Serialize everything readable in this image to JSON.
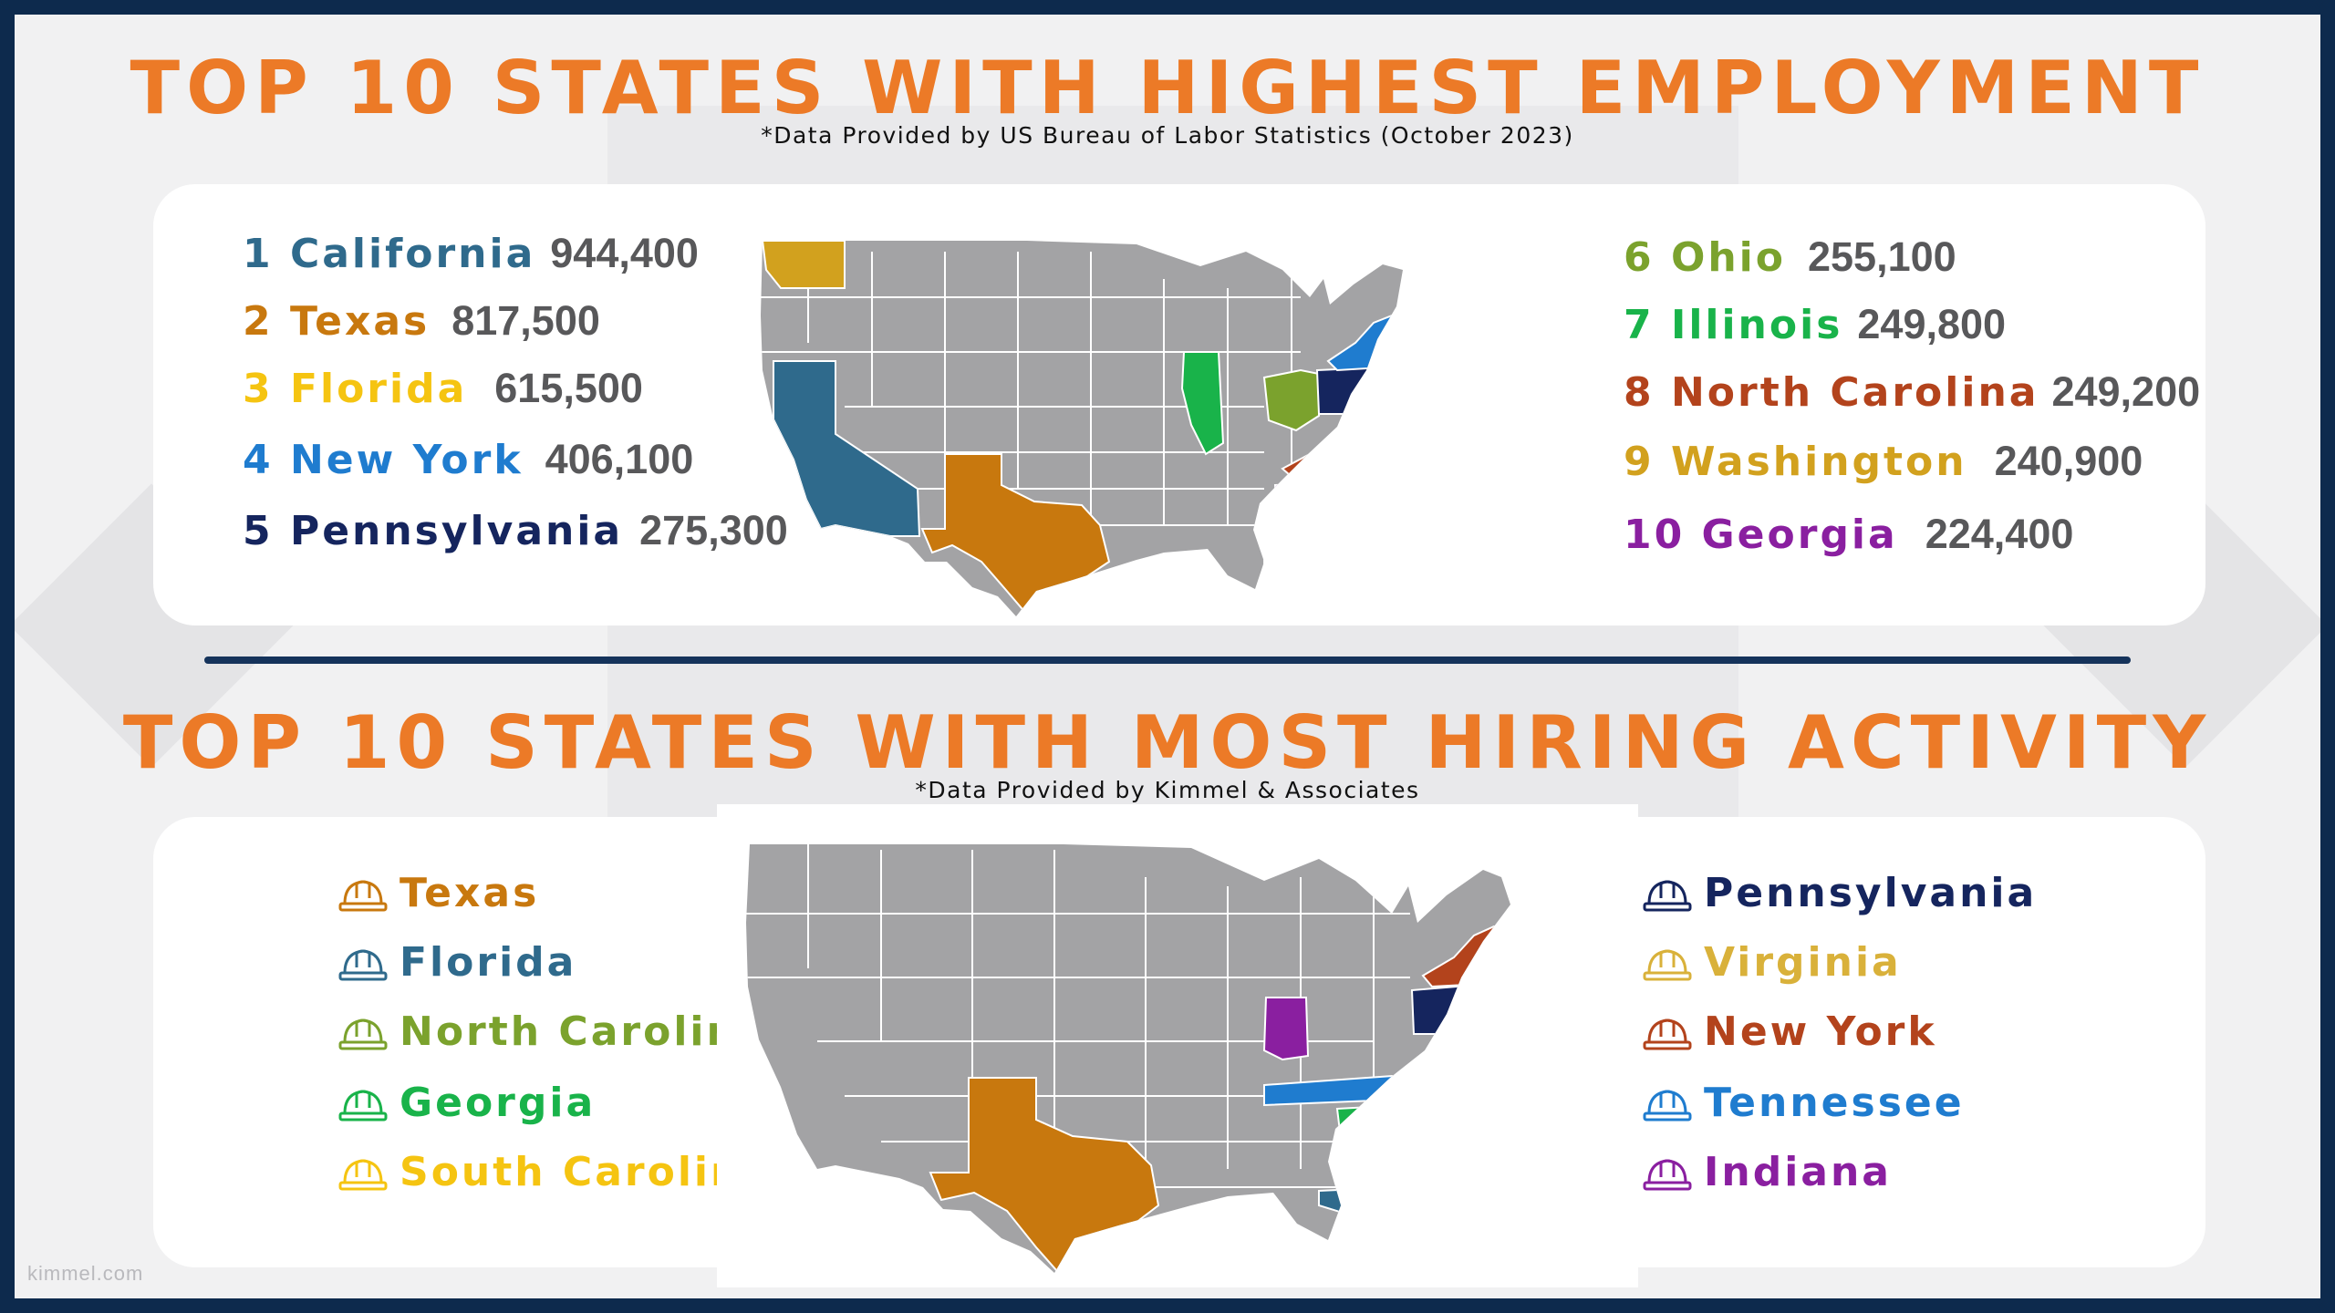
{
  "colors": {
    "accent": "#ec7a27",
    "border": "#0d2a4d",
    "divider": "#15335b",
    "map_gray": "#a3a3a5"
  },
  "top": {
    "title": "TOP 10 STATES WITH HIGHEST EMPLOYMENT",
    "source": "*Data Provided by US Bureau of Labor Statistics (October 2023)",
    "left": [
      {
        "rank": "1",
        "state": "California",
        "value": "944,400",
        "color": "#2f6a8c"
      },
      {
        "rank": "2",
        "state": "Texas",
        "value": "817,500",
        "color": "#c8780e"
      },
      {
        "rank": "3",
        "state": "Florida",
        "value": "615,500",
        "color": "#f5c411"
      },
      {
        "rank": "4",
        "state": "New York",
        "value": "406,100",
        "color": "#1f7ccf"
      },
      {
        "rank": "5",
        "state": "Pennsylvania",
        "value": "275,300",
        "color": "#15255e"
      }
    ],
    "right": [
      {
        "rank": "6",
        "state": "Ohio",
        "value": "255,100",
        "color": "#7ba22d"
      },
      {
        "rank": "7",
        "state": "Illinois",
        "value": "249,800",
        "color": "#19b34a"
      },
      {
        "rank": "8",
        "state": "North Carolina",
        "value": "249,200",
        "color": "#b3431c"
      },
      {
        "rank": "9",
        "state": "Washington",
        "value": "240,900",
        "color": "#d2a11e"
      },
      {
        "rank": "10",
        "state": "Georgia",
        "value": "224,400",
        "color": "#8a1fa0"
      }
    ]
  },
  "bottom": {
    "title": "TOP 10 STATES WITH MOST HIRING ACTIVITY",
    "source": "*Data Provided by Kimmel & Associates",
    "left": [
      {
        "state": "Texas",
        "color": "#c8780e",
        "icon": "hard-hat-icon"
      },
      {
        "state": "Florida",
        "color": "#2f6a8c",
        "icon": "hard-hat-icon"
      },
      {
        "state": "North Carolina",
        "color": "#7ba22d",
        "icon": "hard-hat-icon"
      },
      {
        "state": "Georgia",
        "color": "#19b34a",
        "icon": "hard-hat-icon"
      },
      {
        "state": "South Carolina",
        "color": "#f5c411",
        "icon": "hard-hat-icon"
      }
    ],
    "right": [
      {
        "state": "Pennsylvania",
        "color": "#15255e",
        "icon": "hard-hat-icon"
      },
      {
        "state": "Virginia",
        "color": "#d9b13a",
        "icon": "hard-hat-icon"
      },
      {
        "state": "New York",
        "color": "#b3431c",
        "icon": "hard-hat-icon"
      },
      {
        "state": "Tennessee",
        "color": "#1f7ccf",
        "icon": "hard-hat-icon"
      },
      {
        "state": "Indiana",
        "color": "#8a1fa0",
        "icon": "hard-hat-icon"
      }
    ]
  },
  "footer": {
    "brand": "kimmel.com"
  }
}
